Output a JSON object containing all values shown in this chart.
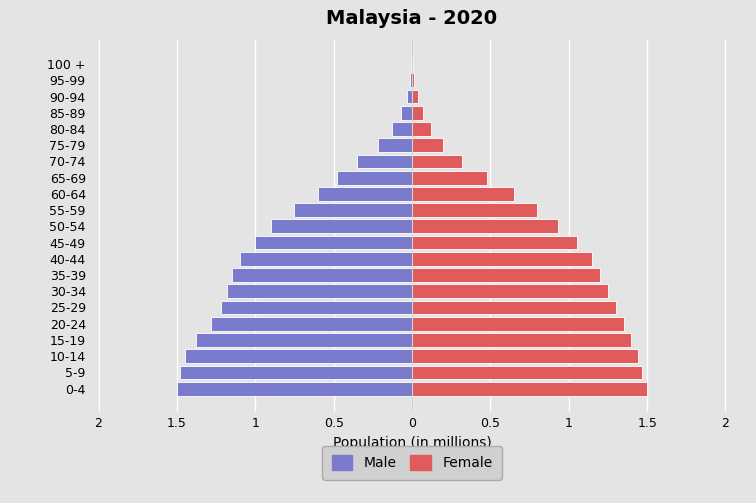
{
  "title": "Malaysia - 2020",
  "age_groups": [
    "0-4",
    "5-9",
    "10-14",
    "15-19",
    "20-24",
    "25-29",
    "30-34",
    "35-39",
    "40-44",
    "45-49",
    "50-54",
    "55-59",
    "60-64",
    "65-69",
    "70-74",
    "75-79",
    "80-84",
    "85-89",
    "90-94",
    "95-99",
    "100 +"
  ],
  "male": [
    1.5,
    1.48,
    1.45,
    1.38,
    1.28,
    1.22,
    1.18,
    1.15,
    1.1,
    1.0,
    0.9,
    0.75,
    0.6,
    0.48,
    0.35,
    0.22,
    0.13,
    0.07,
    0.03,
    0.01,
    0.005
  ],
  "female": [
    1.5,
    1.47,
    1.44,
    1.4,
    1.35,
    1.3,
    1.25,
    1.2,
    1.15,
    1.05,
    0.93,
    0.8,
    0.65,
    0.48,
    0.32,
    0.2,
    0.12,
    0.07,
    0.04,
    0.01,
    0.005
  ],
  "male_color": "#7b7bcd",
  "female_color": "#e05b5b",
  "bg_color": "#e4e4e4",
  "plot_bg_color": "#e4e4e4",
  "xlabel": "Population (in millions)",
  "xlim": [
    -2.05,
    2.05
  ],
  "xticks": [
    -2,
    -1.5,
    -1,
    -0.5,
    0,
    0.5,
    1,
    1.5,
    2
  ],
  "xtick_labels": [
    "2",
    "1.5",
    "1",
    "0.5",
    "0",
    "0.5",
    "1",
    "1.5",
    "2"
  ],
  "bar_height": 0.85,
  "title_fontsize": 14,
  "axis_fontsize": 9,
  "legend_fontsize": 10
}
